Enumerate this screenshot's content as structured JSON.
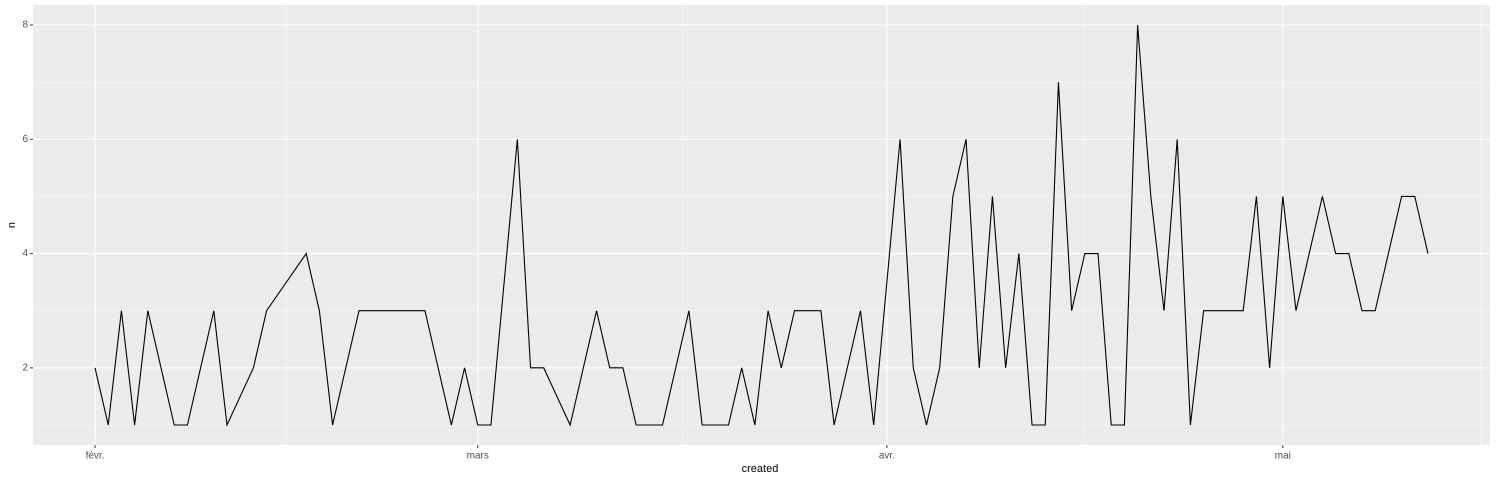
{
  "chart_data": {
    "type": "line",
    "x_label": "created",
    "y_label": "n",
    "x": [
      0,
      1,
      2,
      3,
      4,
      6,
      7,
      9,
      10,
      12,
      13,
      16,
      17,
      18,
      20,
      25,
      26,
      27,
      28,
      29,
      30,
      32,
      33,
      34,
      36,
      38,
      39,
      40,
      41,
      43,
      45,
      46,
      48,
      49,
      50,
      51,
      52,
      53,
      55,
      56,
      58,
      59,
      61,
      62,
      63,
      64,
      65,
      66,
      67,
      68,
      69,
      70,
      71,
      72,
      73,
      74,
      75,
      76,
      77,
      78,
      79,
      80,
      81,
      82,
      83,
      84,
      87,
      88,
      89,
      90,
      91,
      93,
      94,
      95,
      96,
      97,
      99,
      100,
      101
    ],
    "series": [
      {
        "color": "#000000",
        "values": [
          2,
          1,
          3,
          1,
          3,
          1,
          1,
          3,
          1,
          2,
          3,
          4,
          3,
          1,
          3,
          3,
          2,
          1,
          2,
          1,
          1,
          6,
          2,
          2,
          1,
          3,
          2,
          2,
          1,
          1,
          3,
          1,
          1,
          2,
          1,
          3,
          2,
          3,
          3,
          1,
          3,
          1,
          6,
          2,
          1,
          2,
          5,
          6,
          2,
          5,
          2,
          4,
          1,
          1,
          7,
          3,
          4,
          4,
          1,
          1,
          8,
          5,
          3,
          6,
          1,
          3,
          3,
          5,
          2,
          5,
          3,
          5,
          4,
          4,
          3,
          3,
          5,
          5,
          4
        ]
      }
    ],
    "xlim": [
      -4.7,
      105.7
    ],
    "ylim": [
      0.65,
      8.35
    ],
    "xticks": [
      {
        "value": 0,
        "label": "févr."
      },
      {
        "value": 29,
        "label": "mars"
      },
      {
        "value": 60,
        "label": "avr."
      },
      {
        "value": 90,
        "label": "mai"
      }
    ],
    "yticks": [
      2,
      4,
      6,
      8
    ],
    "grid": true
  }
}
